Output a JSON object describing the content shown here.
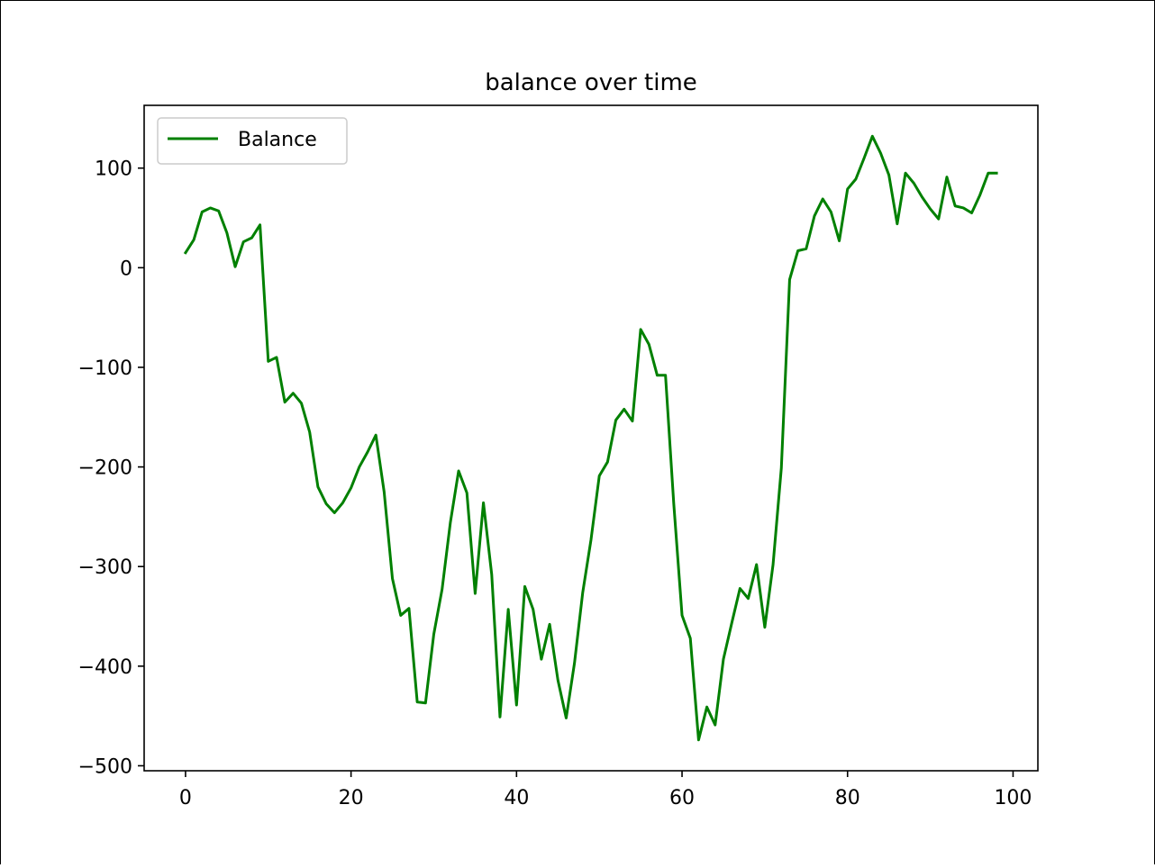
{
  "chart_data": {
    "type": "line",
    "title": "balance over time",
    "xlabel": "",
    "ylabel": "",
    "xlim": [
      -5,
      103
    ],
    "ylim": [
      -505,
      163
    ],
    "xticks": [
      0,
      20,
      40,
      60,
      80,
      100
    ],
    "yticks": [
      100,
      0,
      -100,
      -200,
      -300,
      -400,
      -500
    ],
    "xtick_labels": [
      "0",
      "20",
      "40",
      "60",
      "80",
      "100"
    ],
    "ytick_labels": [
      "100",
      "0",
      "−100",
      "−200",
      "−300",
      "−400",
      "−500"
    ],
    "grid": false,
    "legend": {
      "placement": "top-left",
      "entries": [
        "Balance"
      ]
    },
    "series": [
      {
        "name": "Balance",
        "color": "#008000",
        "x": [
          0,
          1,
          2,
          3,
          4,
          5,
          6,
          7,
          8,
          9,
          10,
          11,
          12,
          13,
          14,
          15,
          16,
          17,
          18,
          19,
          20,
          21,
          22,
          23,
          24,
          25,
          26,
          27,
          28,
          29,
          30,
          31,
          32,
          33,
          34,
          35,
          36,
          37,
          38,
          39,
          40,
          41,
          42,
          43,
          44,
          45,
          46,
          47,
          48,
          49,
          50,
          51,
          52,
          53,
          54,
          55,
          56,
          57,
          58,
          59,
          60,
          61,
          62,
          63,
          64,
          65,
          66,
          67,
          68,
          69,
          70,
          71,
          72,
          73,
          74,
          75,
          76,
          77,
          78,
          79,
          80,
          81,
          82,
          83,
          84,
          85,
          86,
          87,
          88,
          89,
          90,
          91,
          92,
          93,
          94,
          95,
          96,
          97,
          98
        ],
        "values": [
          15,
          28,
          56,
          60,
          57,
          35,
          1,
          26,
          30,
          43,
          -94,
          -90,
          -135,
          -126,
          -136,
          -165,
          -220,
          -237,
          -246,
          -236,
          -221,
          -200,
          -185,
          -168,
          -225,
          -312,
          -349,
          -342,
          -436,
          -437,
          -368,
          -323,
          -256,
          -204,
          -226,
          -327,
          -236,
          -308,
          -451,
          -343,
          -439,
          -320,
          -343,
          -393,
          -358,
          -414,
          -452,
          -397,
          -326,
          -273,
          -209,
          -195,
          -153,
          -142,
          -154,
          -62,
          -77,
          -108,
          -108,
          -237,
          -349,
          -372,
          -474,
          -441,
          -459,
          -393,
          -357,
          -322,
          -332,
          -298,
          -361,
          -298,
          -201,
          -12,
          17,
          19,
          52,
          69,
          56,
          27,
          79,
          89,
          110,
          132,
          115,
          93,
          44,
          95,
          85,
          71,
          59,
          49,
          91,
          62,
          60,
          55,
          73,
          95,
          95
        ]
      }
    ]
  }
}
